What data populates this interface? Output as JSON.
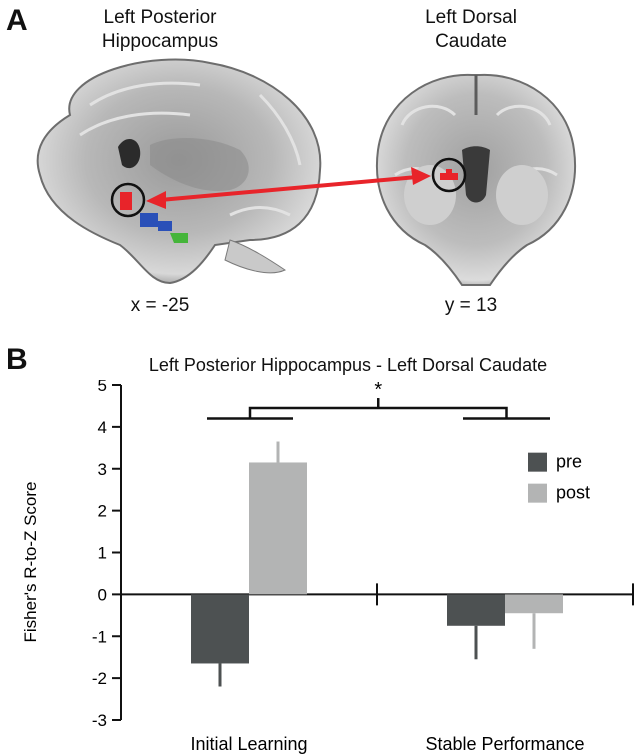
{
  "panel_a": {
    "letter": "A",
    "brains": [
      {
        "title_line1": "Left Posterior",
        "title_line2": "Hippocampus",
        "coordinate": "x = -25"
      },
      {
        "title_line1": "Left Dorsal",
        "title_line2": "Caudate",
        "coordinate": "y = 13"
      }
    ],
    "colors": {
      "roi_red": "#e8242a",
      "roi_blue": "#2a50b8",
      "roi_green": "#45b53a",
      "arrow": "#e8242a"
    }
  },
  "panel_b": {
    "letter": "B"
  },
  "chart_data": {
    "type": "bar",
    "title": "Left Posterior Hippocampus - Left Dorsal Caudate",
    "ylabel": "Fisher's R-to-Z Score",
    "xlabel": "",
    "ylim": [
      -3,
      5
    ],
    "yticks": [
      "-3",
      "-2",
      "-1",
      "0",
      "1",
      "2",
      "3",
      "4",
      "5"
    ],
    "categories": [
      "Initial Learning",
      "Stable Performance"
    ],
    "series": [
      {
        "name": "pre",
        "color": "#4d5152",
        "values": [
          -1.65,
          -0.75
        ],
        "errors": [
          0.55,
          0.8
        ]
      },
      {
        "name": "post",
        "color": "#b3b4b4",
        "values": [
          3.15,
          -0.45
        ],
        "errors": [
          0.5,
          0.85
        ]
      }
    ],
    "significance_marker": "*",
    "legend_position": "right",
    "grid": false
  }
}
